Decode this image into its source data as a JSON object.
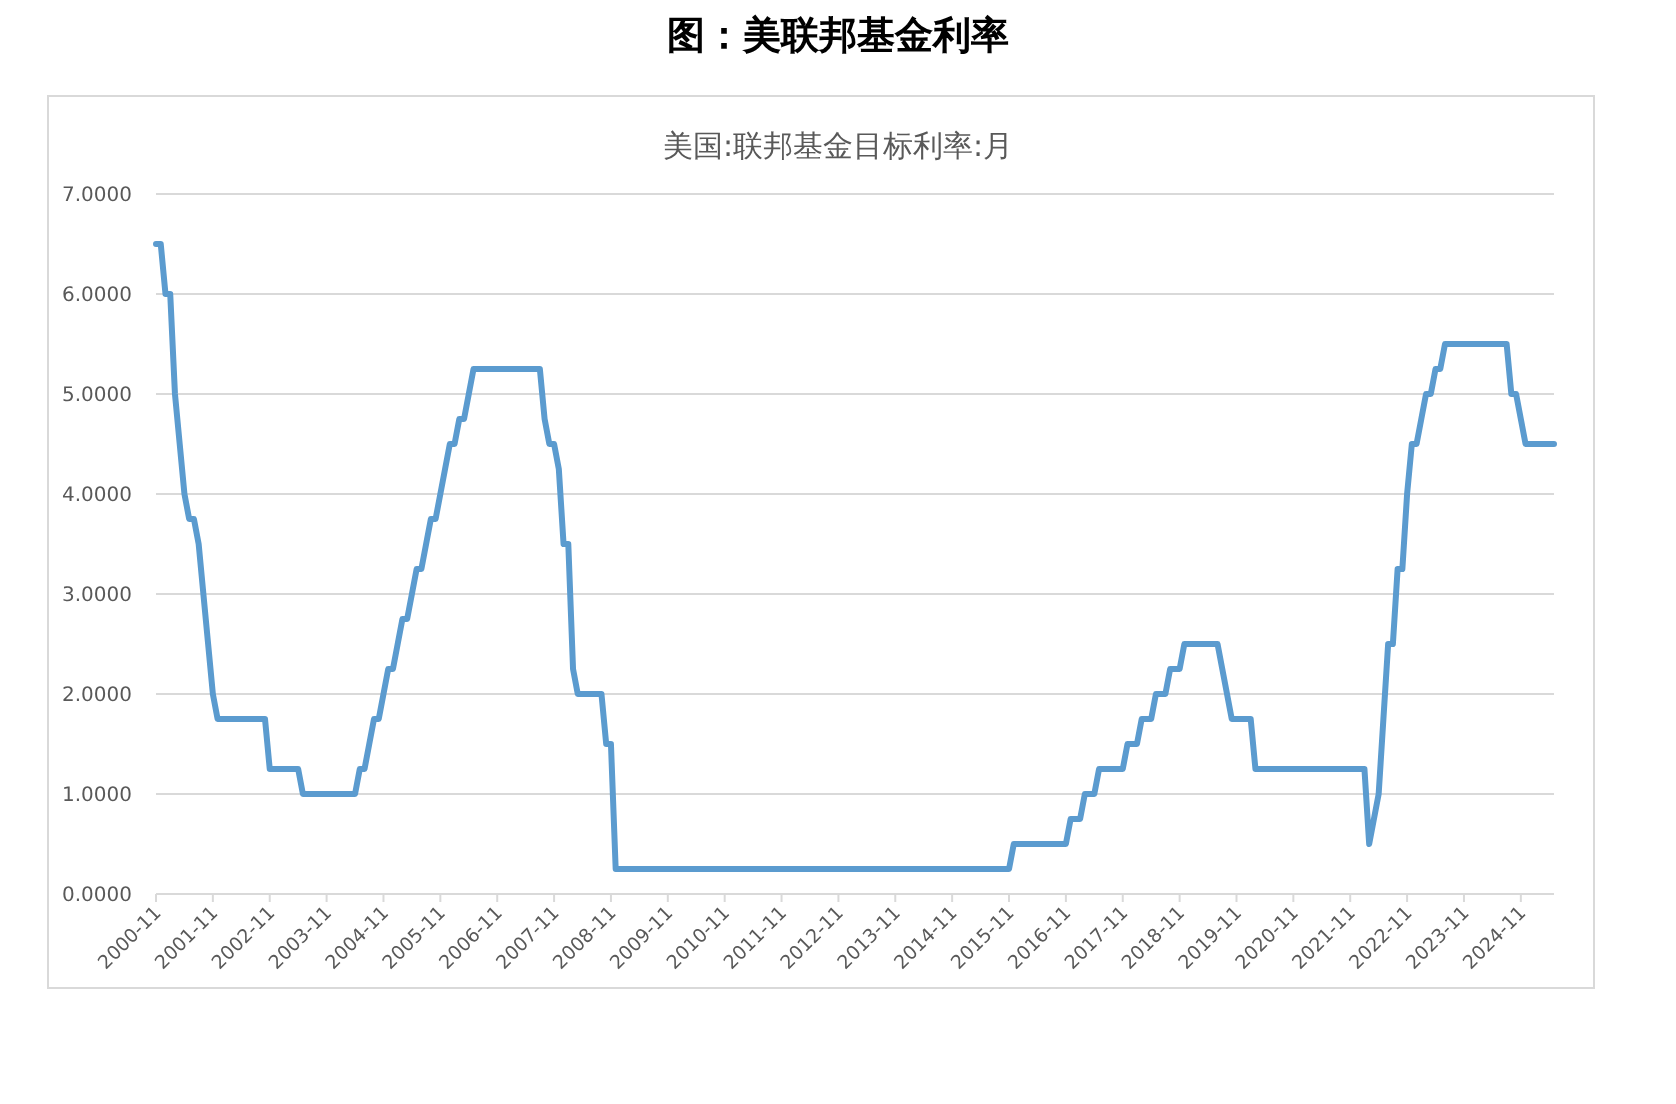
{
  "chart_data": {
    "type": "line",
    "title": "图：美联邦基金利率",
    "subtitle": "美国:联邦基金目标利率:月",
    "series": [
      {
        "color": "#5b9bcf",
        "x": [
          "2000-11",
          "2000-12",
          "2001-01",
          "2001-02",
          "2001-03",
          "2001-04",
          "2001-05",
          "2001-06",
          "2001-07",
          "2001-08",
          "2001-09",
          "2001-10",
          "2001-11",
          "2001-12",
          "2002-10",
          "2002-11",
          "2003-05",
          "2003-06",
          "2004-05",
          "2004-06",
          "2004-07",
          "2004-08",
          "2004-09",
          "2004-10",
          "2004-11",
          "2004-12",
          "2005-01",
          "2005-02",
          "2005-03",
          "2005-04",
          "2005-05",
          "2005-06",
          "2005-07",
          "2005-08",
          "2005-09",
          "2005-10",
          "2005-11",
          "2005-12",
          "2006-01",
          "2006-02",
          "2006-03",
          "2006-04",
          "2006-05",
          "2006-06",
          "2007-08",
          "2007-09",
          "2007-10",
          "2007-11",
          "2007-12",
          "2008-01",
          "2008-02",
          "2008-03",
          "2008-04",
          "2008-09",
          "2008-10",
          "2008-11",
          "2008-12",
          "2015-11",
          "2015-12",
          "2016-11",
          "2016-12",
          "2017-02",
          "2017-03",
          "2017-05",
          "2017-06",
          "2017-11",
          "2017-12",
          "2018-02",
          "2018-03",
          "2018-05",
          "2018-06",
          "2018-08",
          "2018-09",
          "2018-11",
          "2018-12",
          "2019-07",
          "2019-08",
          "2019-09",
          "2019-10",
          "2020-02",
          "2020-03",
          "2022-02",
          "2022-03",
          "2022-05",
          "2022-06",
          "2022-07",
          "2022-08",
          "2022-09",
          "2022-10",
          "2022-11",
          "2022-12",
          "2023-01",
          "2023-02",
          "2023-03",
          "2023-04",
          "2023-05",
          "2023-06",
          "2023-07",
          "2024-08",
          "2024-09",
          "2024-10",
          "2024-11",
          "2024-12",
          "2025-06"
        ],
        "values": [
          6.5,
          6.5,
          6.0,
          6.0,
          5.0,
          4.5,
          4.0,
          3.75,
          3.75,
          3.5,
          3.0,
          2.5,
          2.0,
          1.75,
          1.75,
          1.25,
          1.25,
          1.0,
          1.0,
          1.25,
          1.25,
          1.5,
          1.75,
          1.75,
          2.0,
          2.25,
          2.25,
          2.5,
          2.75,
          2.75,
          3.0,
          3.25,
          3.25,
          3.5,
          3.75,
          3.75,
          4.0,
          4.25,
          4.5,
          4.5,
          4.75,
          4.75,
          5.0,
          5.25,
          5.25,
          4.75,
          4.5,
          4.5,
          4.25,
          3.5,
          3.5,
          2.25,
          2.0,
          2.0,
          1.5,
          1.5,
          0.25,
          0.25,
          0.5,
          0.5,
          0.75,
          0.75,
          1.0,
          1.0,
          1.25,
          1.25,
          1.5,
          1.5,
          1.75,
          1.75,
          2.0,
          2.0,
          2.25,
          2.25,
          2.5,
          2.5,
          2.25,
          2.0,
          1.75,
          1.75,
          1.25,
          1.25,
          0.5,
          1.0,
          1.75,
          2.5,
          2.5,
          3.25,
          3.25,
          4.0,
          4.5,
          4.5,
          4.75,
          5.0,
          5.0,
          5.25,
          5.25,
          5.5,
          5.5,
          5.0,
          5.0,
          4.75,
          4.5,
          4.5
        ]
      }
    ],
    "xlim": [
      "2000-11",
      "2025-06"
    ],
    "xticks": [
      "2000-11",
      "2001-11",
      "2002-11",
      "2003-11",
      "2004-11",
      "2005-11",
      "2006-11",
      "2007-11",
      "2008-11",
      "2009-11",
      "2010-11",
      "2011-11",
      "2012-11",
      "2013-11",
      "2014-11",
      "2015-11",
      "2016-11",
      "2017-11",
      "2018-11",
      "2019-11",
      "2020-11",
      "2021-11",
      "2022-11",
      "2023-11",
      "2024-11"
    ],
    "ylim": [
      0,
      7
    ],
    "yticks": [
      {
        "value": 0,
        "label": "0.0000"
      },
      {
        "value": 1,
        "label": "1.0000"
      },
      {
        "value": 2,
        "label": "2.0000"
      },
      {
        "value": 3,
        "label": "3.0000"
      },
      {
        "value": 4,
        "label": "4.0000"
      },
      {
        "value": 5,
        "label": "5.0000"
      },
      {
        "value": 6,
        "label": "6.0000"
      },
      {
        "value": 7,
        "label": "7.0000"
      }
    ],
    "grid": "y",
    "marker": "none",
    "line_style": "solid"
  }
}
